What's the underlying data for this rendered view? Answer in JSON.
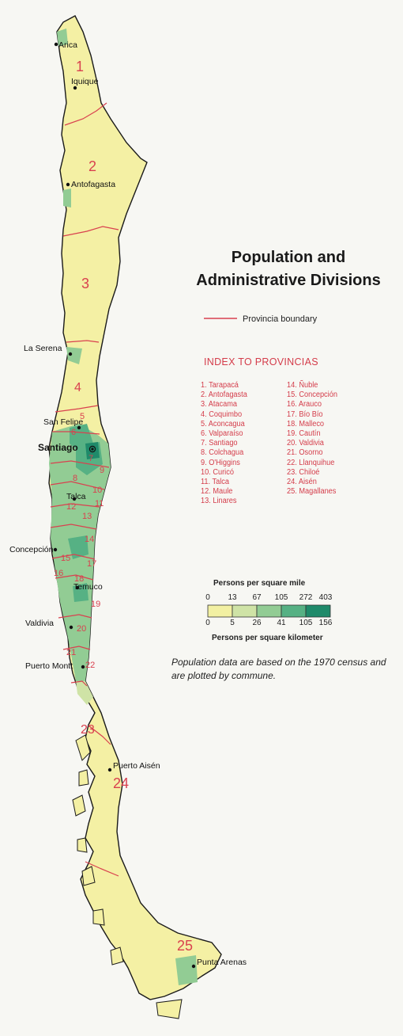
{
  "title_line1": "Population and",
  "title_line2": "Administrative Divisions",
  "boundary_legend": {
    "label": "Provincia boundary",
    "color": "#d9414f"
  },
  "index": {
    "heading": "INDEX TO PROVINCIAS",
    "column1": [
      "1. Tarapacá",
      "2. Antofagasta",
      "3. Atacama",
      "4. Coquimbo",
      "5. Aconcagua",
      "6. Valparaíso",
      "7. Santiago",
      "8. Colchagua",
      "9. O'Higgins",
      "10. Curicó",
      "11. Talca",
      "12. Maule",
      "13. Linares"
    ],
    "column2": [
      "14. Ñuble",
      "15. Concepción",
      "16. Arauco",
      "17. Bío Bío",
      "18. Malleco",
      "19. Cautín",
      "20. Valdivia",
      "21. Osorno",
      "22. Llanquihue",
      "23. Chiloé",
      "24. Aisén",
      "25. Magallanes"
    ]
  },
  "density_scale": {
    "mile_caption": "Persons per square mile",
    "km_caption": "Persons per square kilometer",
    "mile_ticks": [
      "0",
      "13",
      "67",
      "105",
      "272",
      "403"
    ],
    "km_ticks": [
      "0",
      "5",
      "26",
      "41",
      "105",
      "156"
    ],
    "colors": [
      "#f2f0a2",
      "#cfe3a6",
      "#92cc94",
      "#56b184",
      "#1f8a6a"
    ]
  },
  "note": "Population data are based on the 1970 census and are plotted by commune.",
  "colors": {
    "land": "#f4f0a4",
    "water": "#f7f7f3",
    "boundary": "#d9414f",
    "coast": "#1a1a1a",
    "province_number": "#d9414f"
  },
  "cities": [
    "Arica",
    "Iquique",
    "Antofagasta",
    "La Serena",
    "San Felipe",
    "Santiago",
    "Talca",
    "Concepción",
    "Temuco",
    "Valdivia",
    "Puerto Montt",
    "Puerto Aisén",
    "Punta Arenas"
  ],
  "province_numbers": [
    "1",
    "2",
    "3",
    "4",
    "5",
    "6",
    "7",
    "8",
    "9",
    "10",
    "11",
    "12",
    "13",
    "14",
    "15",
    "16",
    "17",
    "18",
    "19",
    "20",
    "21",
    "22",
    "23",
    "24",
    "25"
  ]
}
